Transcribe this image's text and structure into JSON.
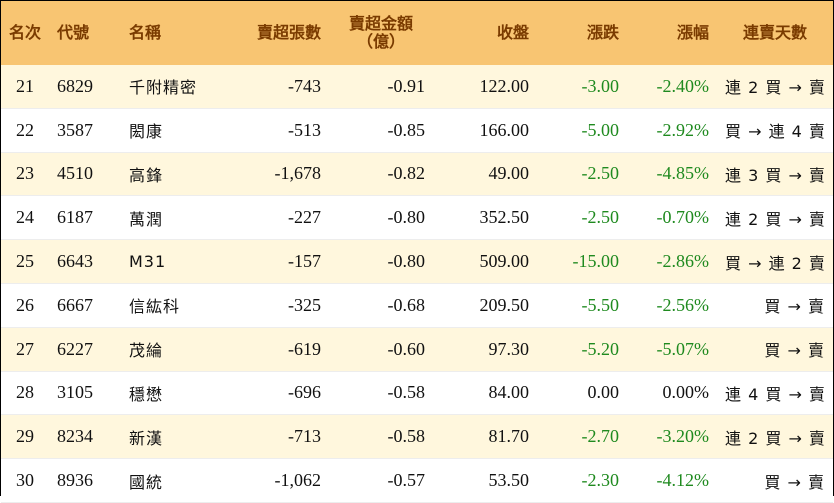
{
  "headers": {
    "rank": "名次",
    "code": "代號",
    "name": "名稱",
    "sell_volume": "賣超張數",
    "sell_amount_line1": "賣超金額",
    "sell_amount_line2": "（億）",
    "close": "收盤",
    "change": "漲跌",
    "change_pct": "漲幅",
    "streak": "連賣天數"
  },
  "colors": {
    "header_bg": "#f8c572",
    "header_text": "#7a3b00",
    "stripe": "#fff7dd",
    "negative": "#1f8a1f"
  },
  "rows": [
    {
      "rank": "21",
      "code": "6829",
      "name": "千附精密",
      "sell_volume": "-743",
      "sell_amount": "-0.91",
      "close": "122.00",
      "change": "-3.00",
      "change_pct": "-2.40%",
      "streak": "連 2 買 → 賣"
    },
    {
      "rank": "22",
      "code": "3587",
      "name": "閎康",
      "sell_volume": "-513",
      "sell_amount": "-0.85",
      "close": "166.00",
      "change": "-5.00",
      "change_pct": "-2.92%",
      "streak": "買 → 連 4 賣"
    },
    {
      "rank": "23",
      "code": "4510",
      "name": "高鋒",
      "sell_volume": "-1,678",
      "sell_amount": "-0.82",
      "close": "49.00",
      "change": "-2.50",
      "change_pct": "-4.85%",
      "streak": "連 3 買 → 賣"
    },
    {
      "rank": "24",
      "code": "6187",
      "name": "萬潤",
      "sell_volume": "-227",
      "sell_amount": "-0.80",
      "close": "352.50",
      "change": "-2.50",
      "change_pct": "-0.70%",
      "streak": "連 2 買 → 賣"
    },
    {
      "rank": "25",
      "code": "6643",
      "name": "M31",
      "sell_volume": "-157",
      "sell_amount": "-0.80",
      "close": "509.00",
      "change": "-15.00",
      "change_pct": "-2.86%",
      "streak": "買 → 連 2 賣"
    },
    {
      "rank": "26",
      "code": "6667",
      "name": "信紘科",
      "sell_volume": "-325",
      "sell_amount": "-0.68",
      "close": "209.50",
      "change": "-5.50",
      "change_pct": "-2.56%",
      "streak": "買 → 賣"
    },
    {
      "rank": "27",
      "code": "6227",
      "name": "茂綸",
      "sell_volume": "-619",
      "sell_amount": "-0.60",
      "close": "97.30",
      "change": "-5.20",
      "change_pct": "-5.07%",
      "streak": "買 → 賣"
    },
    {
      "rank": "28",
      "code": "3105",
      "name": "穩懋",
      "sell_volume": "-696",
      "sell_amount": "-0.58",
      "close": "84.00",
      "change": "0.00",
      "change_pct": "0.00%",
      "streak": "連 4 買 → 賣"
    },
    {
      "rank": "29",
      "code": "8234",
      "name": "新漢",
      "sell_volume": "-713",
      "sell_amount": "-0.58",
      "close": "81.70",
      "change": "-2.70",
      "change_pct": "-3.20%",
      "streak": "連 2 買 → 賣"
    },
    {
      "rank": "30",
      "code": "8936",
      "name": "國統",
      "sell_volume": "-1,062",
      "sell_amount": "-0.57",
      "close": "53.50",
      "change": "-2.30",
      "change_pct": "-4.12%",
      "streak": "買 → 賣"
    }
  ]
}
